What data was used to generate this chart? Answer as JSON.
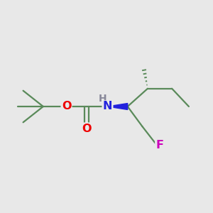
{
  "bg_color": "#e8e8e8",
  "bond_color": "#5a8a5a",
  "bond_lw": 1.6,
  "atom_colors": {
    "O": "#ee0000",
    "N": "#2222dd",
    "F": "#cc00bb",
    "H": "#888899",
    "C": "#5a8a5a"
  },
  "font_size": 11.5,
  "figsize": [
    3.0,
    3.0
  ],
  "dpi": 100,
  "xlim": [
    0,
    10
  ],
  "ylim": [
    2,
    9
  ]
}
